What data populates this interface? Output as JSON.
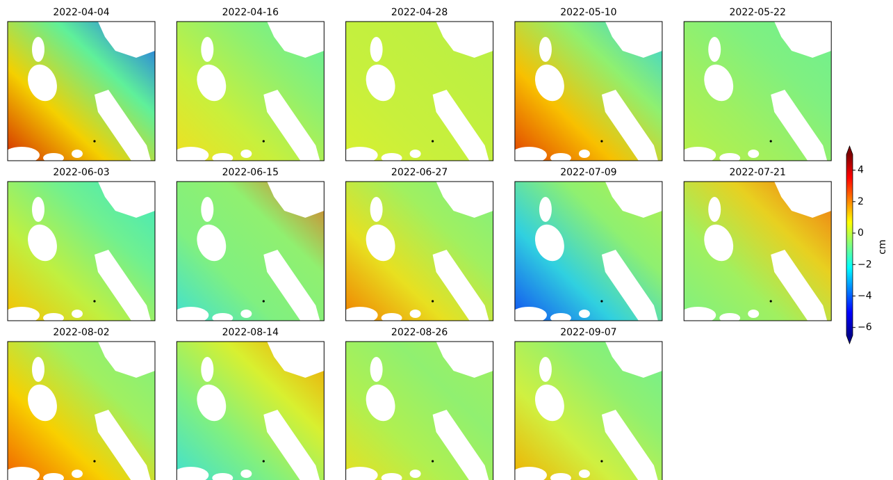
{
  "panels": [
    "2022-04-04",
    "2022-04-16",
    "2022-04-28",
    "2022-05-10",
    "2022-05-22",
    "2022-06-03",
    "2022-06-15",
    "2022-06-27",
    "2022-07-09",
    "2022-07-21",
    "2022-08-02",
    "2022-08-14",
    "2022-08-26",
    "2022-09-07"
  ],
  "colorbar": {
    "label": "cm",
    "lim": [
      -6.5,
      5
    ],
    "ticks": [
      4,
      2,
      0,
      {
        "value": -2,
        "label": "−2"
      },
      {
        "value": -4,
        "label": "−4"
      },
      {
        "value": -6,
        "label": "−6"
      }
    ]
  }
}
